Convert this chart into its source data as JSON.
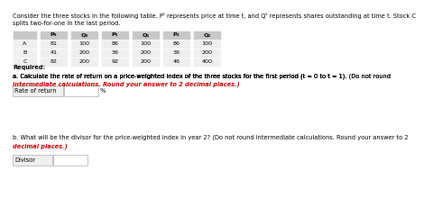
{
  "title_line1": "Consider the three stocks in the following table. Pᵗ represents price at time t, and Qᵗ represents shares outstanding at time t. Stock C",
  "title_line2": "splits two-for-one in the last period.",
  "table_headers": [
    "",
    "P₀",
    "Q₀",
    "P₁",
    "Q₁",
    "P₂",
    "Q₂"
  ],
  "table_rows": [
    [
      "A",
      "81",
      "100",
      "86",
      "100",
      "86",
      "100"
    ],
    [
      "B",
      "41",
      "200",
      "36",
      "200",
      "36",
      "200"
    ],
    [
      "C",
      "82",
      "200",
      "92",
      "200",
      "46",
      "400"
    ]
  ],
  "required_label": "Required:",
  "part_a_label": "a.",
  "part_a_normal": "Calculate the rate of return on a price-weighted index of the three stocks for the first period (t = 0 to t = 1). ",
  "part_a_bold_red": "(Do not round\nintermediate calculations. Round your answer to 2 decimal places.)",
  "part_a_field_label": "Rate of return",
  "part_a_field_unit": "%",
  "part_b_normal": "b. What will be the divisor for the price-weighted index in year 2? ",
  "part_b_bold_red": "(Do not round intermediate calculations. Round your answer to 2\ndecimal places.)",
  "part_b_field_label": "Divisor",
  "bg_color": "#ffffff",
  "table_header_bg": "#c8c8c8",
  "table_row_bg": "#efefef",
  "bold_red_color": "#cc0000",
  "text_color": "#000000",
  "input_box_bg": "#f5f5f5",
  "input_box_edge": "#aaaaaa",
  "font_size_title": 4.8,
  "font_size_table": 4.6,
  "font_size_body": 4.8
}
